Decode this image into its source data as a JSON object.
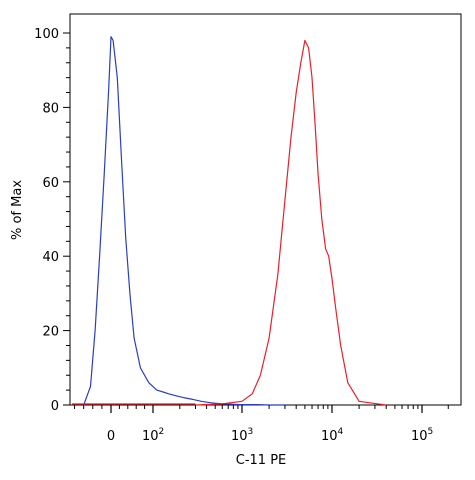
{
  "chart_data": {
    "type": "line",
    "xlabel": "C-11 PE",
    "ylabel": "% of Max",
    "xscale": "biexponential",
    "ylim": [
      0,
      100
    ],
    "grid": false,
    "x_ticks": [
      {
        "value": 0,
        "text": "0"
      },
      {
        "value": 100,
        "base": "10",
        "exp": "2"
      },
      {
        "value": 1000,
        "base": "10",
        "exp": "3"
      },
      {
        "value": 10000,
        "base": "10",
        "exp": "4"
      },
      {
        "value": 100000,
        "base": "10",
        "exp": "5"
      }
    ],
    "y_ticks": [
      "0",
      "20",
      "40",
      "60",
      "80",
      "100"
    ],
    "series": [
      {
        "color": "#2a3fbf",
        "x": [
          -60,
          -45,
          -35,
          -25,
          -15,
          -5,
          0,
          5,
          15,
          25,
          35,
          45,
          55,
          70,
          90,
          110,
          130,
          150,
          180,
          220,
          280,
          350,
          450,
          600,
          800,
          1000,
          1500,
          2000,
          3000
        ],
        "y": [
          0,
          5,
          20,
          40,
          62,
          85,
          99,
          98,
          88,
          66,
          45,
          30,
          18,
          10,
          6,
          4,
          3.5,
          3,
          2.5,
          2,
          1.5,
          1,
          0.6,
          0.3,
          0.2,
          0.1,
          0.1,
          0,
          0
        ]
      },
      {
        "color": "#e8202a",
        "x": [
          300,
          600,
          1000,
          1300,
          1600,
          2000,
          2500,
          3000,
          3500,
          4000,
          4500,
          5000,
          5500,
          6000,
          6500,
          7000,
          7700,
          8500,
          9200,
          10000,
          11000,
          12500,
          15000,
          20000,
          40000
        ],
        "y": [
          0,
          0.3,
          1,
          3,
          8,
          18,
          35,
          55,
          72,
          84,
          92,
          98,
          96,
          88,
          75,
          62,
          50,
          42,
          40,
          34,
          26,
          16,
          6,
          1,
          0
        ]
      }
    ]
  }
}
